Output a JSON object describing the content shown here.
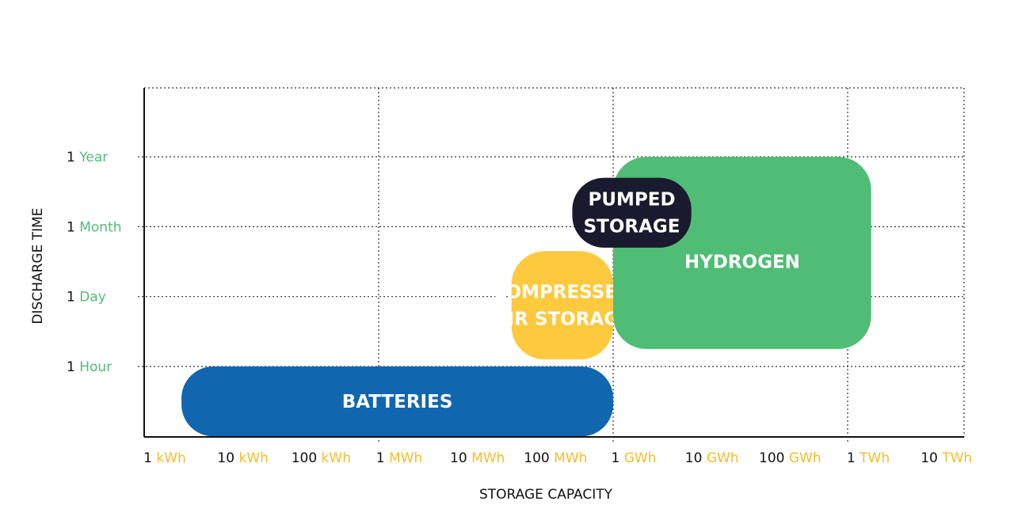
{
  "chart_data": {
    "type": "region",
    "xlabel": "STORAGE CAPACITY",
    "ylabel": "DISCHARGE TIME",
    "x_scale": "log",
    "x_ticks": [
      {
        "num": "1",
        "unit": "kWh",
        "value_kwh": 1
      },
      {
        "num": "10",
        "unit": "kWh",
        "value_kwh": 10
      },
      {
        "num": "100",
        "unit": "kWh",
        "value_kwh": 100
      },
      {
        "num": "1",
        "unit": "MWh",
        "value_kwh": 1000
      },
      {
        "num": "10",
        "unit": "MWh",
        "value_kwh": 10000
      },
      {
        "num": "100",
        "unit": "MWh",
        "value_kwh": 100000
      },
      {
        "num": "1",
        "unit": "GWh",
        "value_kwh": 1000000
      },
      {
        "num": "10",
        "unit": "GWh",
        "value_kwh": 10000000
      },
      {
        "num": "100",
        "unit": "GWh",
        "value_kwh": 100000000
      },
      {
        "num": "1",
        "unit": "TWh",
        "value_kwh": 1000000000
      },
      {
        "num": "10",
        "unit": "TWh",
        "value_kwh": 10000000000
      }
    ],
    "y_ticks": [
      {
        "num": "1",
        "unit": "Hour"
      },
      {
        "num": "1",
        "unit": "Day"
      },
      {
        "num": "1",
        "unit": "Month"
      },
      {
        "num": "1",
        "unit": "Year"
      }
    ],
    "xlim_kwh": [
      1,
      30000000000
    ],
    "ylim_ticks": [
      -1,
      4
    ],
    "grid": true,
    "regions": [
      {
        "lines": [
          "BATTERIES"
        ],
        "color": "#1066AF",
        "x_kwh": [
          3,
          1000000
        ],
        "y_ticks": [
          -1,
          0
        ]
      },
      {
        "lines": [
          "COMPRESSED",
          "AIR STORAGE"
        ],
        "color": "#FDC93E",
        "x_kwh": [
          50000,
          1000000
        ],
        "y_ticks": [
          0.1,
          1.65
        ]
      },
      {
        "lines": [
          "HYDROGEN"
        ],
        "color": "#4FBD75",
        "x_kwh": [
          1000000,
          2000000000
        ],
        "y_ticks": [
          0.25,
          3
        ]
      },
      {
        "lines": [
          "PUMPED",
          "STORAGE"
        ],
        "color": "#1A1A2E",
        "x_kwh": [
          300000,
          10000000
        ],
        "y_ticks": [
          1.7,
          2.7
        ]
      }
    ],
    "colors": {
      "x_unit": "#F8BC2A",
      "y_unit": "#4FBD75",
      "grid": "#333333",
      "axis": "#111111"
    }
  }
}
